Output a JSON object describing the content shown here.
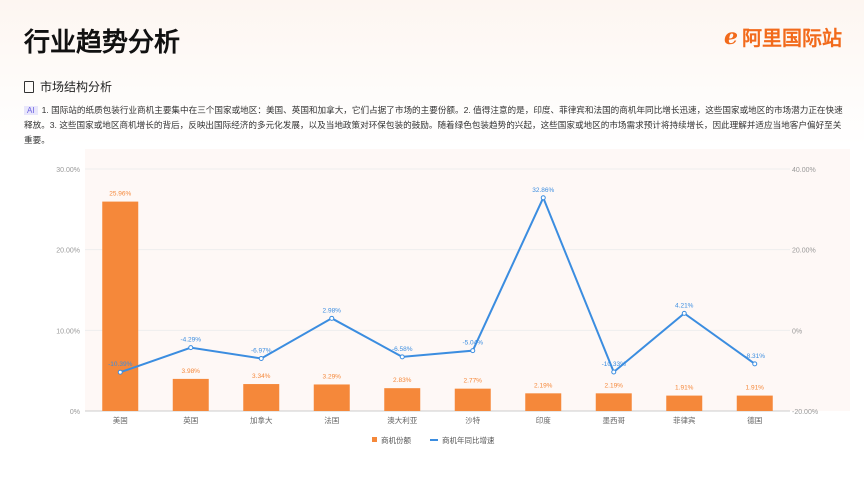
{
  "header": {
    "title": "行业趋势分析",
    "logo_text": "阿里国际站"
  },
  "section": {
    "title": "市场结构分析",
    "ai_badge": "AI",
    "description": "1. 国际站的纸质包装行业商机主要集中在三个国家或地区：美国、英国和加拿大，它们占据了市场的主要份额。2. 值得注意的是，印度、菲律宾和法国的商机年同比增长迅速，这些国家或地区的市场潜力正在快速释放。3. 这些国家或地区商机增长的背后，反映出国际经济的多元化发展，以及当地政策对环保包装的鼓励。随着绿色包装趋势的兴起，这些国家或地区的市场需求预计将持续增长，因此理解并适应当地客户偏好至关重要。"
  },
  "chart_data": {
    "type": "bar+line",
    "categories": [
      "美国",
      "英国",
      "加拿大",
      "法国",
      "澳大利亚",
      "沙特",
      "印度",
      "墨西哥",
      "菲律宾",
      "德国"
    ],
    "series": [
      {
        "name": "商机份额",
        "type": "bar",
        "axis": "left",
        "color": "#f5883a",
        "values": [
          25.96,
          3.98,
          3.34,
          3.29,
          2.83,
          2.77,
          2.19,
          2.19,
          1.91,
          1.91
        ],
        "labels": [
          "25.96%",
          "3.98%",
          "3.34%",
          "3.29%",
          "2.83%",
          "2.77%",
          "2.19%",
          "2.19%",
          "1.91%",
          "1.91%"
        ]
      },
      {
        "name": "商机年同比增速",
        "type": "line",
        "axis": "right",
        "color": "#3b8de0",
        "values": [
          -10.39,
          -4.29,
          -6.97,
          2.98,
          -6.58,
          -5.04,
          32.86,
          -10.33,
          4.21,
          -8.31
        ],
        "labels": [
          "-10.39%",
          "-4.29%",
          "-6.97%",
          "2.98%",
          "-6.58%",
          "-5.04%",
          "32.86%",
          "-10.33%",
          "4.21%",
          "-8.31%"
        ]
      }
    ],
    "left_axis": {
      "range": [
        0,
        30
      ],
      "ticks": [
        "0%",
        "10.00%",
        "20.00%",
        "30.00%"
      ]
    },
    "right_axis": {
      "range": [
        -20,
        40
      ],
      "ticks": [
        "-20.00%",
        "0%",
        "20.00%",
        "40.00%"
      ]
    },
    "legend": "bottom-center"
  }
}
